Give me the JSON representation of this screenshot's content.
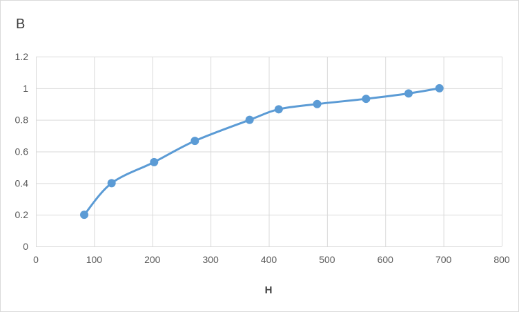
{
  "colors": {
    "series": "#5b9bd5",
    "grid": "#d9d9d9",
    "text": "#595959"
  },
  "chart_data": {
    "type": "scatter",
    "title": "",
    "ylabel": "B",
    "xlabel": "H",
    "xlim": [
      0,
      800
    ],
    "ylim": [
      0,
      1.2
    ],
    "x_ticks": [
      0,
      100,
      200,
      300,
      400,
      500,
      600,
      700,
      800
    ],
    "y_ticks": [
      0,
      0.2,
      0.4,
      0.6,
      0.8,
      1,
      1.2
    ],
    "x_tick_labels": [
      "0",
      "100",
      "200",
      "300",
      "400",
      "500",
      "600",
      "700",
      "800"
    ],
    "y_tick_labels": [
      "0",
      "0.2",
      "0.4",
      "0.6",
      "0.8",
      "1",
      "1.2"
    ],
    "grid": true,
    "smooth_line": true,
    "legend": "none",
    "series": [
      {
        "x": [
          83,
          130,
          203,
          273,
          367,
          417,
          483,
          567,
          640,
          693
        ],
        "y": [
          0.2,
          0.4,
          0.533,
          0.667,
          0.8,
          0.867,
          0.9,
          0.933,
          0.967,
          1.0
        ]
      }
    ]
  }
}
